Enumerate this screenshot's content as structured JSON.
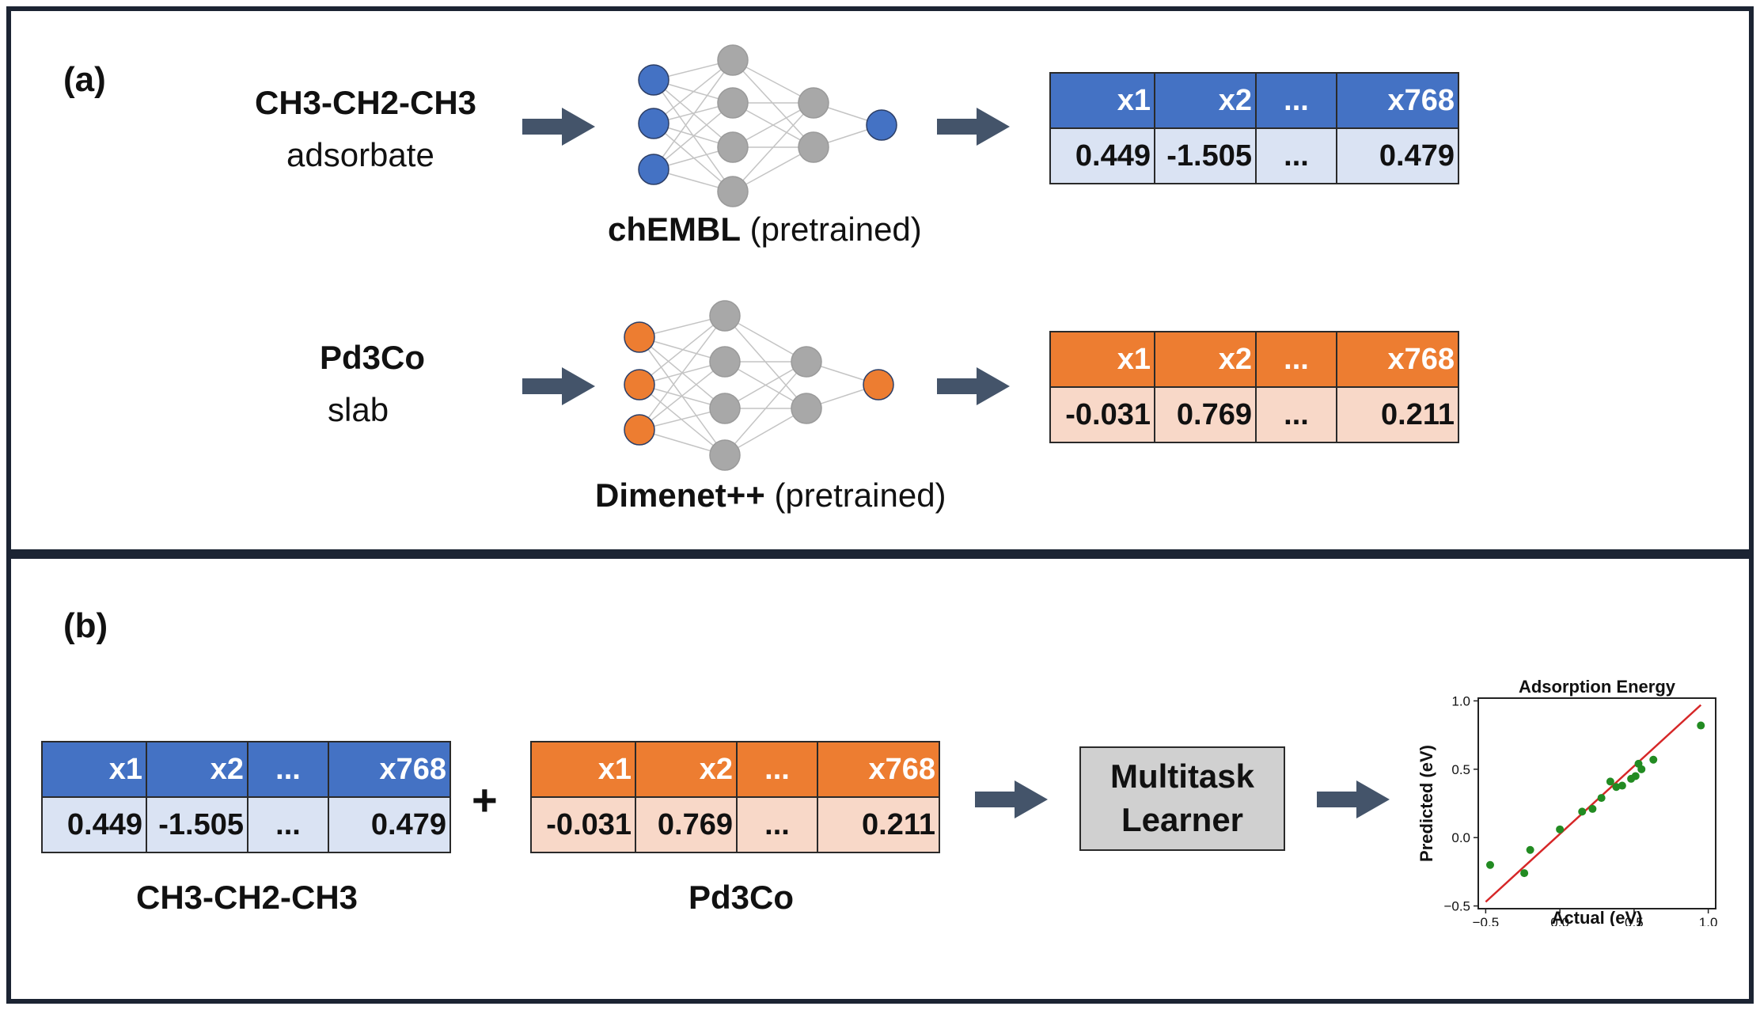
{
  "panel_a": {
    "label": "(a)",
    "adsorbate": {
      "name": "CH3-CH2-CH3",
      "type": "adsorbate",
      "model_name": "chEMBL",
      "model_note": "(pretrained)",
      "node_color": "#4472c4",
      "vector": {
        "headers": [
          "x1",
          "x2",
          "...",
          "x768"
        ],
        "values": [
          "0.449",
          "-1.505",
          "...",
          "0.479"
        ]
      }
    },
    "slab": {
      "name": "Pd3Co",
      "type": "slab",
      "model_name": "Dimenet++",
      "model_note": "(pretrained)",
      "node_color": "#ed7d31",
      "vector": {
        "headers": [
          "x1",
          "x2",
          "...",
          "x768"
        ],
        "values": [
          "-0.031",
          "0.769",
          "...",
          "0.211"
        ]
      }
    }
  },
  "panel_b": {
    "label": "(b)",
    "adsorbate_vector": {
      "headers": [
        "x1",
        "x2",
        "...",
        "x768"
      ],
      "values": [
        "0.449",
        "-1.505",
        "...",
        "0.479"
      ],
      "caption": "CH3-CH2-CH3"
    },
    "plus": "+",
    "slab_vector": {
      "headers": [
        "x1",
        "x2",
        "...",
        "x768"
      ],
      "values": [
        "-0.031",
        "0.769",
        "...",
        "0.211"
      ],
      "caption": "Pd3Co"
    },
    "learner_line1": "Multitask",
    "learner_line2": "Learner"
  },
  "chart_data": {
    "type": "scatter",
    "title": "Adsorption Energy",
    "xlabel": "Actual (eV)",
    "ylabel": "Predicted (eV)",
    "xlim": [
      -0.55,
      1.05
    ],
    "ylim": [
      -0.52,
      1.02
    ],
    "xticks": [
      -0.5,
      0.0,
      0.5,
      1.0
    ],
    "xtick_labels": [
      "−0.5",
      "0.0",
      "0.5",
      "1.0"
    ],
    "yticks": [
      -0.5,
      0.0,
      0.5,
      1.0
    ],
    "ytick_labels": [
      "−0.5",
      "0.0",
      "0.5",
      "1.0"
    ],
    "grid": false,
    "point_color": "#228b22",
    "fit_line_color": "#d62728",
    "fit_line": {
      "x": [
        -0.5,
        0.95
      ],
      "y": [
        -0.47,
        0.97
      ]
    },
    "points": [
      {
        "x": -0.47,
        "y": -0.2
      },
      {
        "x": -0.24,
        "y": -0.26
      },
      {
        "x": -0.2,
        "y": -0.09
      },
      {
        "x": 0.0,
        "y": 0.06
      },
      {
        "x": 0.15,
        "y": 0.19
      },
      {
        "x": 0.22,
        "y": 0.21
      },
      {
        "x": 0.28,
        "y": 0.29
      },
      {
        "x": 0.34,
        "y": 0.41
      },
      {
        "x": 0.38,
        "y": 0.37
      },
      {
        "x": 0.42,
        "y": 0.38
      },
      {
        "x": 0.48,
        "y": 0.43
      },
      {
        "x": 0.51,
        "y": 0.45
      },
      {
        "x": 0.53,
        "y": 0.54
      },
      {
        "x": 0.55,
        "y": 0.5
      },
      {
        "x": 0.63,
        "y": 0.57
      },
      {
        "x": 0.95,
        "y": 0.82
      }
    ]
  }
}
